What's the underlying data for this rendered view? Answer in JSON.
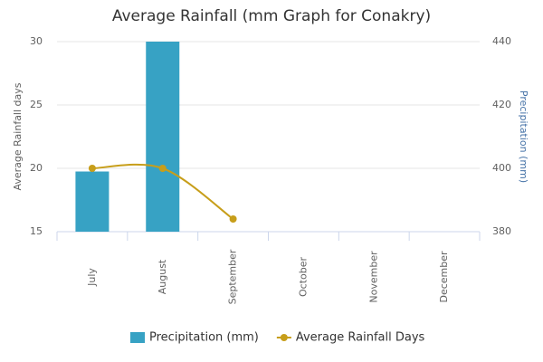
{
  "chart_data": {
    "type": "combo",
    "title": "Average Rainfall (mm Graph for Conakry)",
    "categories": [
      "July",
      "August",
      "September",
      "October",
      "November",
      "December"
    ],
    "series": [
      {
        "name": "Precipitation (mm)",
        "type": "bar",
        "axis": "y2",
        "color": "#37a2c4",
        "values": [
          399,
          440,
          null,
          null,
          null,
          null
        ]
      },
      {
        "name": "Average Rainfall Days",
        "type": "line",
        "color": "#c79e1a",
        "values": [
          20,
          20,
          16,
          null,
          null,
          null
        ]
      }
    ],
    "ylabel": "Average Rainfall days",
    "y2label": "Precipitation (mm)",
    "ylim": [
      15,
      30
    ],
    "yticks": [
      15,
      20,
      25,
      30
    ],
    "y2lim": [
      380,
      440
    ],
    "y2ticks": [
      380,
      400,
      420,
      440
    ],
    "grid": true,
    "legend": "bottom"
  }
}
